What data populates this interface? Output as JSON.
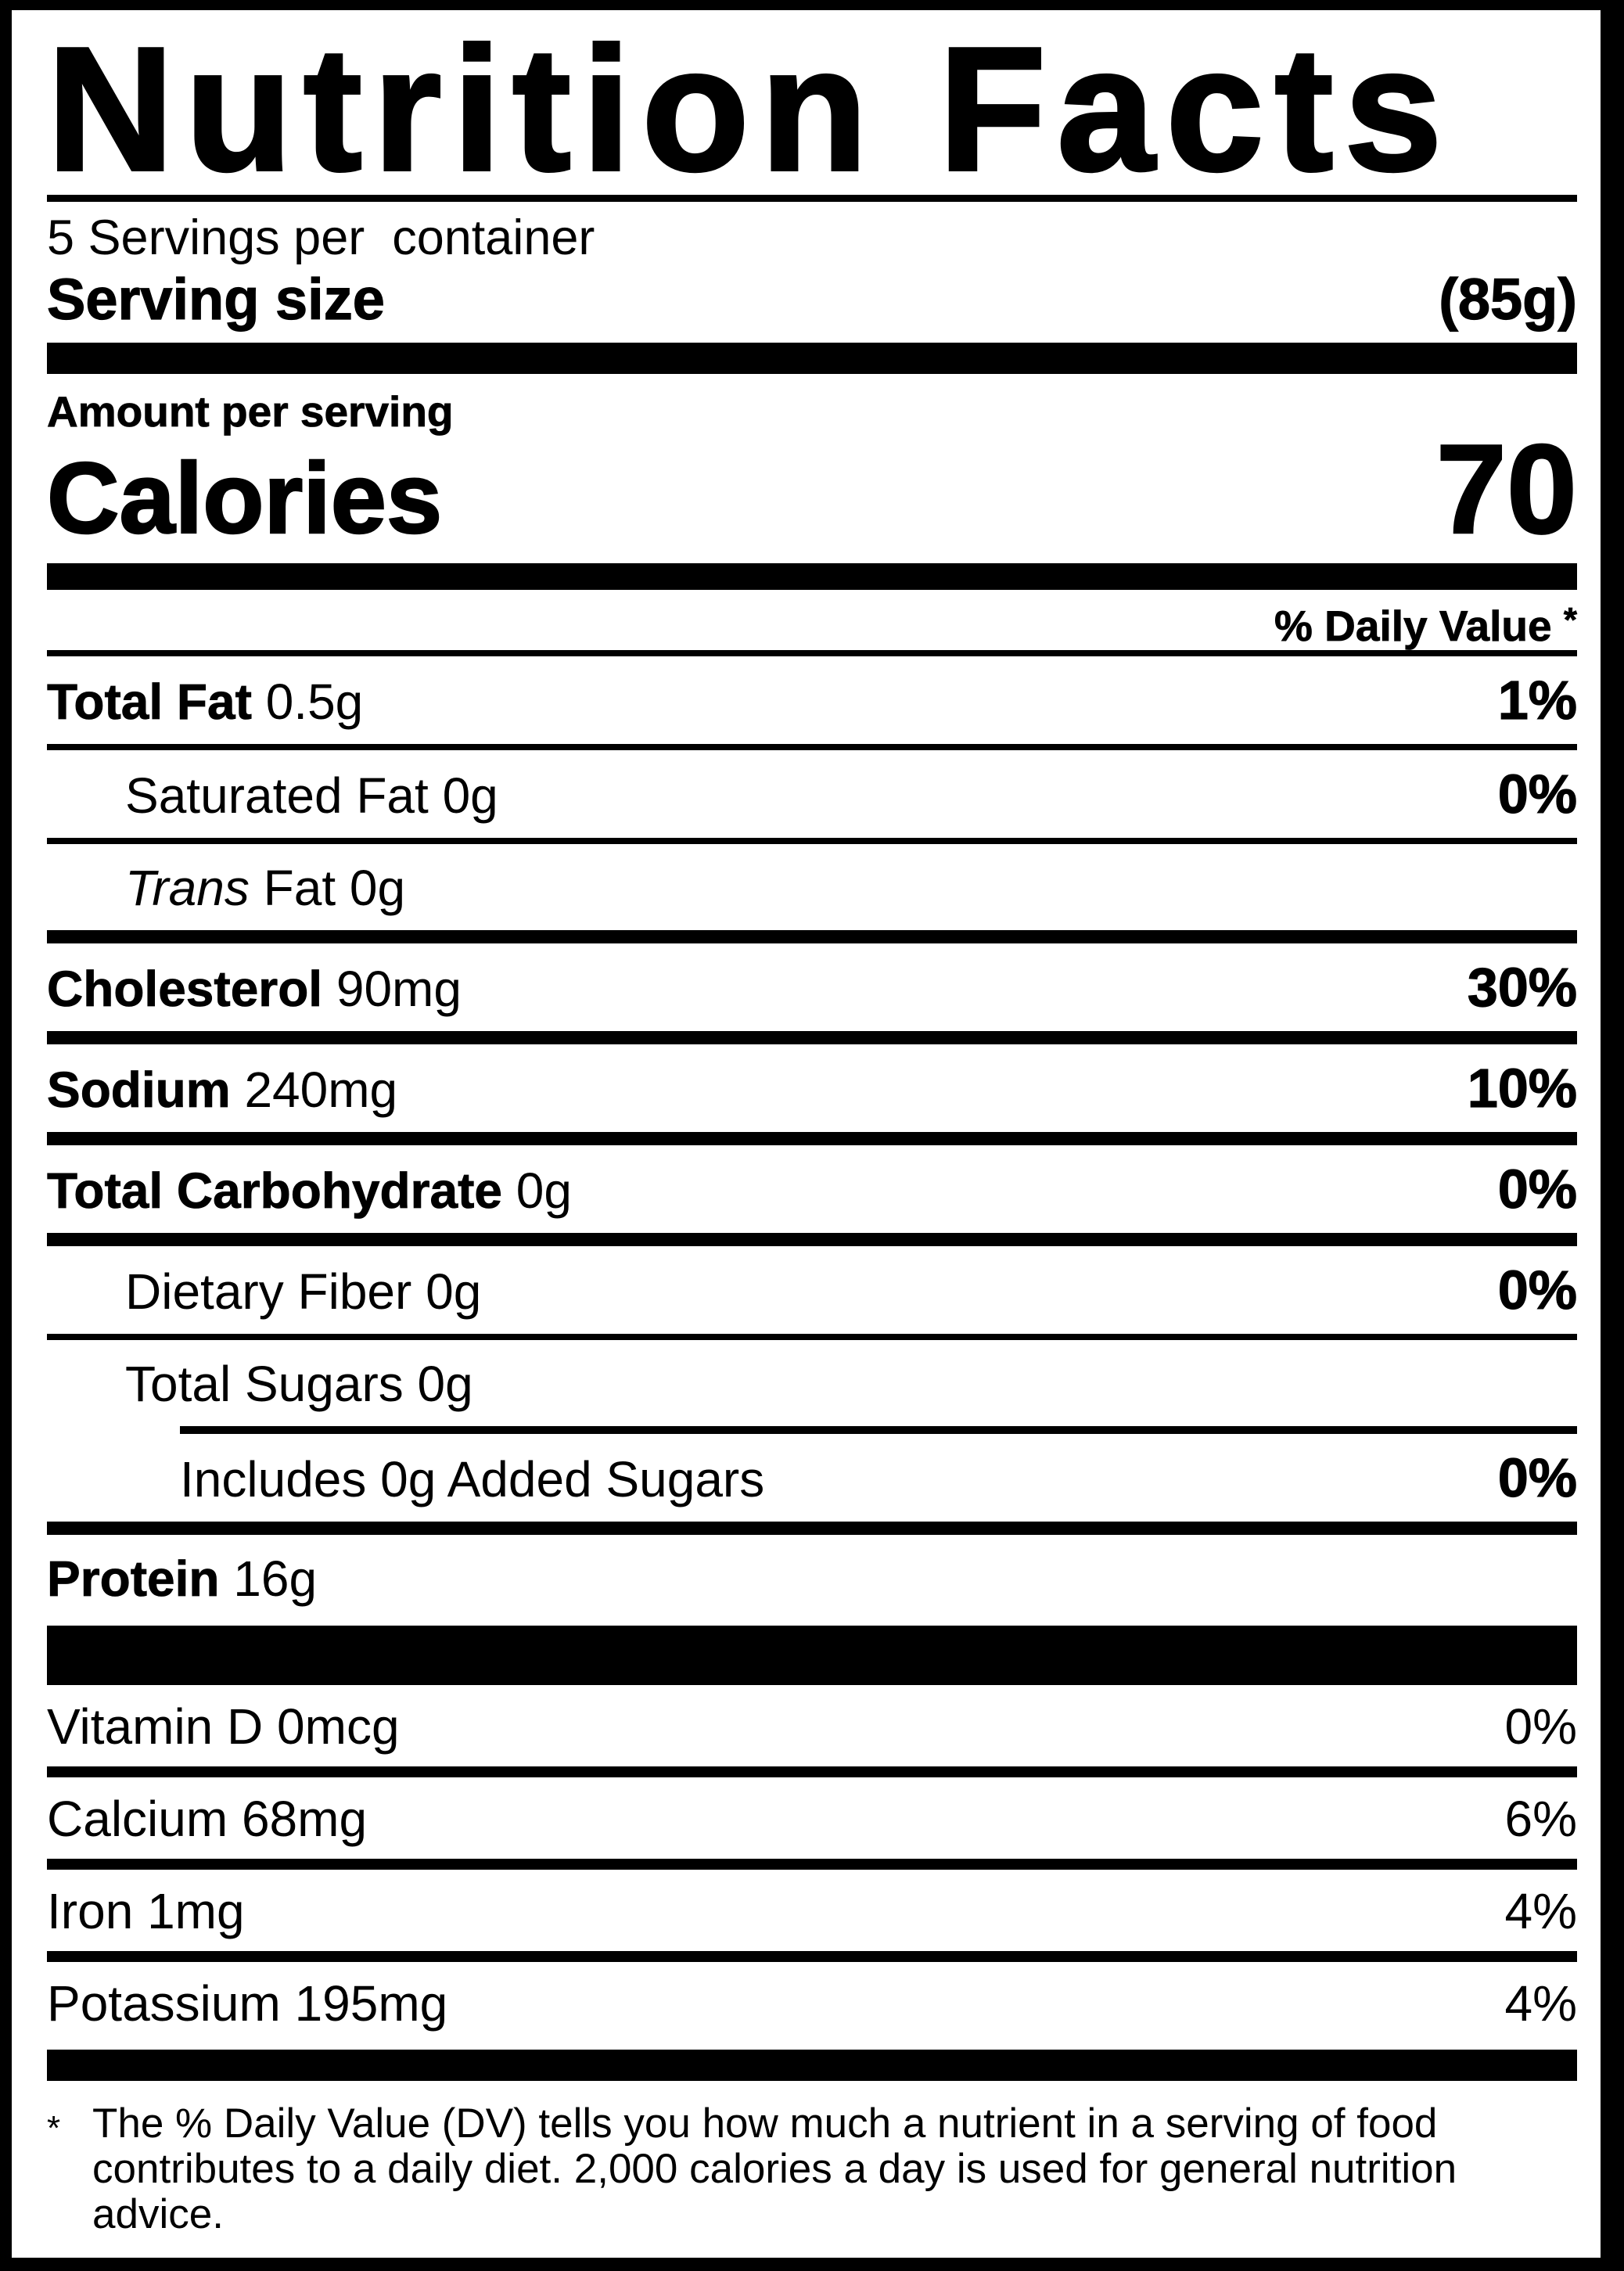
{
  "label": {
    "title": "Nutrition Facts",
    "servings_per_container": "5 Servings per  container",
    "serving_size": {
      "label": "Serving size",
      "value": "(85g)"
    },
    "amount_per_serving": "Amount per serving",
    "calories": {
      "label": "Calories",
      "value": "70"
    },
    "daily_value_header": {
      "text": "% Daily Value",
      "asterisk": "*"
    },
    "nutrients": [
      {
        "name": "Total Fat",
        "amount": "0.5g",
        "dv": "1%"
      },
      {
        "name": "Saturated Fat",
        "amount": "0g",
        "dv": "0%"
      },
      {
        "name_italic": "Trans",
        "name": "Fat",
        "amount": "0g",
        "dv": ""
      },
      {
        "name": "Cholesterol",
        "amount": "90mg",
        "dv": "30%"
      },
      {
        "name": "Sodium",
        "amount": "240mg",
        "dv": "10%"
      },
      {
        "name": "Total Carbohydrate",
        "amount": "0g",
        "dv": "0%"
      },
      {
        "name": "Dietary Fiber",
        "amount": "0g",
        "dv": "0%"
      },
      {
        "name": "Total Sugars",
        "amount": "0g",
        "dv": ""
      },
      {
        "name": "Includes 0g Added Sugars",
        "amount": "",
        "dv": "0%"
      },
      {
        "name": "Protein",
        "amount": "16g",
        "dv": ""
      }
    ],
    "vitamins": [
      {
        "name": "Vitamin D",
        "amount": "0mcg",
        "dv": "0%"
      },
      {
        "name": "Calcium",
        "amount": "68mg",
        "dv": "6%"
      },
      {
        "name": "Iron",
        "amount": "1mg",
        "dv": "4%"
      },
      {
        "name": "Potassium",
        "amount": "195mg",
        "dv": "4%"
      }
    ],
    "footnote": {
      "marker": "*",
      "text": "The % Daily Value (DV) tells you how much a nutrient in a serving of food contributes to a daily diet. 2,000 calories a day is used for general nutrition advice."
    }
  },
  "colors": {
    "text": "#000000",
    "background": "#ffffff",
    "border": "#000000"
  }
}
